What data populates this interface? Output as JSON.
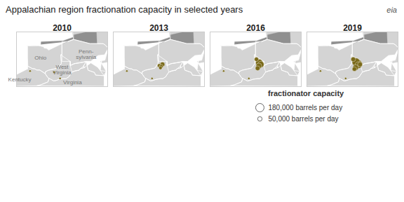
{
  "chart_data": {
    "type": "bubble",
    "title": "Appalachian region fractionation capacity in selected years",
    "color": "#7a6a1a",
    "xlim": [
      -86.2,
      -74.8
    ],
    "ylim": [
      36.5,
      43.5
    ],
    "tick_labels": false,
    "grid": false,
    "legend": "bottom-right",
    "size_lim": [
      0,
      180000
    ],
    "size_legend": {
      "title": "fractionator capacity",
      "values": [
        180000,
        50000
      ],
      "labels": [
        "180,000 barrels per day",
        "50,000 barrels per day"
      ]
    },
    "panels": [
      {
        "title": "2010",
        "x": [
          -84.5,
          -81.5,
          -80.75
        ],
        "values": [
          38.5,
          38.35,
          37.55
        ],
        "sizes": [
          12000,
          15000,
          12000
        ]
      },
      {
        "title": "2013",
        "x": [
          -84.5,
          -81.35,
          -80.45,
          -80.05,
          -80.2,
          -80.3
        ],
        "values": [
          38.5,
          37.55,
          39.2,
          39.35,
          39.1,
          38.9
        ],
        "sizes": [
          12000,
          12000,
          35000,
          55000,
          35000,
          30000
        ]
      },
      {
        "title": "2016",
        "x": [
          -84.5,
          -81.35,
          -80.4,
          -80.05,
          -79.85,
          -80.1,
          -80.25
        ],
        "values": [
          38.5,
          37.55,
          40.0,
          39.55,
          39.35,
          39.15,
          38.85
        ],
        "sizes": [
          12000,
          12000,
          45000,
          130000,
          100000,
          80000,
          55000
        ]
      },
      {
        "title": "2019",
        "x": [
          -84.5,
          -81.35,
          -80.4,
          -80.05,
          -79.85,
          -79.75,
          -80.1,
          -80.25,
          -79.55
        ],
        "values": [
          38.5,
          37.55,
          40.0,
          39.65,
          39.45,
          39.25,
          38.95,
          38.75,
          39.35
        ],
        "sizes": [
          12000,
          12000,
          55000,
          160000,
          180000,
          120000,
          80000,
          50000,
          60000
        ]
      }
    ],
    "annotations": [
      {
        "text": "eia"
      },
      {
        "text": "Ohio",
        "x": -83.2,
        "y": 40.2,
        "panel": "2010"
      },
      {
        "text": "Penn-\nsylvania",
        "x": -77.5,
        "y": 40.6,
        "panel": "2010"
      },
      {
        "text": "West\nVirginia",
        "x": -80.5,
        "y": 38.7,
        "panel": "2010"
      },
      {
        "text": "Kentucky",
        "x": -85.8,
        "y": 37.4,
        "panel": "2010"
      },
      {
        "text": "Virginia",
        "x": -79.2,
        "y": 37.0,
        "panel": "2010"
      }
    ],
    "land": [
      [
        [
          -84.82,
          41.7
        ],
        [
          -83.45,
          41.73
        ],
        [
          -82.84,
          41.59
        ],
        [
          -82.74,
          41.42
        ],
        [
          -82.44,
          41.38
        ],
        [
          -82.18,
          41.16
        ],
        [
          -80.52,
          41.98
        ],
        [
          -80.52,
          40.64
        ],
        [
          -80.67,
          40.58
        ],
        [
          -80.6,
          39.72
        ],
        [
          -80.6,
          39.45
        ],
        [
          -81.0,
          38.87
        ],
        [
          -82.19,
          38.6
        ],
        [
          -82.57,
          38.42
        ],
        [
          -82.61,
          38.17
        ],
        [
          -83.28,
          38.62
        ],
        [
          -83.68,
          38.63
        ],
        [
          -83.9,
          38.77
        ],
        [
          -84.22,
          38.81
        ],
        [
          -84.78,
          39.12
        ],
        [
          -84.82,
          40.31
        ],
        [
          -84.82,
          41.7
        ]
      ],
      [
        [
          -80.52,
          41.98
        ],
        [
          -80.52,
          42.27
        ],
        [
          -79.76,
          42.27
        ],
        [
          -79.07,
          42.54
        ],
        [
          -77.0,
          42.0
        ],
        [
          -76.14,
          42.0
        ],
        [
          -75.36,
          41.99
        ],
        [
          -75.14,
          41.85
        ],
        [
          -74.72,
          41.43
        ],
        [
          -75.19,
          40.57
        ],
        [
          -76.0,
          40.48
        ],
        [
          -76.91,
          39.72
        ],
        [
          -77.47,
          39.72
        ],
        [
          -78.0,
          39.6
        ],
        [
          -78.97,
          39.44
        ],
        [
          -79.48,
          39.2
        ],
        [
          -79.48,
          39.72
        ],
        [
          -80.52,
          39.72
        ],
        [
          -80.52,
          40.64
        ],
        [
          -80.52,
          41.98
        ]
      ],
      [
        [
          -82.61,
          38.17
        ],
        [
          -82.57,
          38.42
        ],
        [
          -82.19,
          38.6
        ],
        [
          -81.0,
          38.87
        ],
        [
          -80.6,
          39.45
        ],
        [
          -80.6,
          39.72
        ],
        [
          -80.67,
          40.58
        ],
        [
          -79.48,
          39.72
        ],
        [
          -79.48,
          39.2
        ],
        [
          -78.97,
          39.44
        ],
        [
          -78.0,
          39.6
        ],
        [
          -77.47,
          39.72
        ],
        [
          -77.82,
          39.14
        ],
        [
          -77.72,
          38.93
        ],
        [
          -78.18,
          38.81
        ],
        [
          -78.41,
          38.6
        ],
        [
          -78.87,
          38.51
        ],
        [
          -79.25,
          38.36
        ],
        [
          -79.5,
          38.0
        ],
        [
          -79.65,
          37.76
        ],
        [
          -80.0,
          37.52
        ],
        [
          -80.3,
          37.52
        ],
        [
          -80.86,
          37.43
        ],
        [
          -81.26,
          37.28
        ],
        [
          -81.55,
          37.24
        ],
        [
          -82.14,
          37.56
        ],
        [
          -82.3,
          37.68
        ],
        [
          -82.61,
          38.17
        ]
      ],
      [
        [
          -84.82,
          38.77
        ],
        [
          -84.78,
          39.12
        ],
        [
          -84.22,
          38.81
        ],
        [
          -83.9,
          38.77
        ],
        [
          -83.68,
          38.63
        ],
        [
          -83.28,
          38.62
        ],
        [
          -82.61,
          38.17
        ],
        [
          -82.3,
          37.68
        ],
        [
          -82.14,
          37.56
        ],
        [
          -82.25,
          37.11
        ],
        [
          -83.13,
          36.74
        ],
        [
          -83.68,
          36.6
        ],
        [
          -88.07,
          36.5
        ],
        [
          -89.57,
          36.5
        ],
        [
          -89.57,
          37.9
        ],
        [
          -88.5,
          37.9
        ],
        [
          -86.5,
          37.9
        ],
        [
          -84.82,
          38.77
        ]
      ],
      [
        [
          -77.47,
          39.72
        ],
        [
          -77.82,
          39.14
        ],
        [
          -77.72,
          38.93
        ],
        [
          -78.18,
          38.81
        ],
        [
          -78.41,
          38.6
        ],
        [
          -78.87,
          38.51
        ],
        [
          -79.25,
          38.36
        ],
        [
          -79.5,
          38.0
        ],
        [
          -79.65,
          37.76
        ],
        [
          -80.0,
          37.52
        ],
        [
          -80.3,
          37.52
        ],
        [
          -80.86,
          37.43
        ],
        [
          -81.26,
          37.28
        ],
        [
          -81.55,
          37.24
        ],
        [
          -82.14,
          37.56
        ],
        [
          -82.25,
          37.11
        ],
        [
          -83.13,
          36.74
        ],
        [
          -83.68,
          36.6
        ],
        [
          -75.24,
          36.55
        ],
        [
          -75.24,
          37.9
        ],
        [
          -76.3,
          37.97
        ],
        [
          -76.46,
          38.32
        ],
        [
          -77.25,
          38.6
        ],
        [
          -77.47,
          39.72
        ]
      ],
      [
        [
          -79.76,
          42.27
        ],
        [
          -79.07,
          42.54
        ],
        [
          -77.0,
          42.0
        ],
        [
          -76.14,
          42.0
        ],
        [
          -75.36,
          41.99
        ],
        [
          -75.14,
          41.85
        ],
        [
          -74.72,
          41.43
        ],
        [
          -74.5,
          41.0
        ],
        [
          -73.9,
          40.9
        ],
        [
          -73.65,
          40.98
        ],
        [
          -72.1,
          41.3
        ],
        [
          -71.85,
          41.32
        ],
        [
          -71.8,
          42.01
        ],
        [
          -72.46,
          42.73
        ],
        [
          -73.26,
          43.58
        ],
        [
          -73.64,
          43.63
        ],
        [
          -74.03,
          43.87
        ],
        [
          -75.3,
          43.88
        ],
        [
          -76.22,
          43.97
        ],
        [
          -76.82,
          43.63
        ],
        [
          -78.72,
          43.62
        ],
        [
          -79.17,
          43.45
        ],
        [
          -79.07,
          43.12
        ],
        [
          -79.07,
          42.54
        ],
        [
          -79.76,
          42.27
        ]
      ],
      [
        [
          -74.72,
          41.43
        ],
        [
          -74.5,
          41.0
        ],
        [
          -73.9,
          40.9
        ],
        [
          -74.0,
          40.05
        ],
        [
          -74.2,
          39.7
        ],
        [
          -75.55,
          39.46
        ],
        [
          -75.56,
          39.83
        ],
        [
          -75.14,
          39.88
        ],
        [
          -74.72,
          41.43
        ]
      ],
      [
        [
          -79.48,
          39.72
        ],
        [
          -79.48,
          39.2
        ],
        [
          -78.97,
          39.44
        ],
        [
          -78.0,
          39.6
        ],
        [
          -77.47,
          39.72
        ],
        [
          -77.25,
          38.6
        ],
        [
          -76.46,
          38.32
        ],
        [
          -76.3,
          37.97
        ],
        [
          -75.24,
          37.9
        ],
        [
          -74.98,
          38.45
        ],
        [
          -75.72,
          38.56
        ],
        [
          -76.05,
          38.98
        ],
        [
          -76.9,
          39.54
        ],
        [
          -77.72,
          38.93
        ],
        [
          -77.82,
          39.14
        ],
        [
          -78.18,
          38.81
        ],
        [
          -78.41,
          38.6
        ],
        [
          -78.87,
          38.51
        ],
        [
          -79.25,
          38.36
        ],
        [
          -79.48,
          39.2
        ]
      ],
      [
        [
          -75.78,
          39.72
        ],
        [
          -75.55,
          39.46
        ],
        [
          -74.98,
          38.45
        ],
        [
          -75.24,
          37.9
        ],
        [
          -75.72,
          38.56
        ],
        [
          -75.56,
          39.83
        ],
        [
          -75.78,
          39.72
        ]
      ]
    ],
    "water": [
      [
        [
          -84.82,
          41.7
        ],
        [
          -83.45,
          41.73
        ],
        [
          -83.16,
          41.72
        ],
        [
          -83.12,
          42.24
        ],
        [
          -80.4,
          42.36
        ],
        [
          -78.9,
          42.9
        ],
        [
          -79.07,
          43.12
        ],
        [
          -79.17,
          43.45
        ],
        [
          -79.07,
          42.54
        ],
        [
          -79.76,
          42.27
        ],
        [
          -80.52,
          41.98
        ],
        [
          -82.18,
          41.16
        ],
        [
          -82.44,
          41.38
        ],
        [
          -82.74,
          41.42
        ],
        [
          -82.84,
          41.59
        ],
        [
          -83.45,
          41.73
        ],
        [
          -84.82,
          41.7
        ]
      ],
      [
        [
          -79.07,
          43.12
        ],
        [
          -76.82,
          43.63
        ],
        [
          -76.22,
          43.97
        ],
        [
          -76.14,
          42.0
        ],
        [
          -77.0,
          42.0
        ],
        [
          -79.07,
          42.54
        ],
        [
          -79.07,
          43.12
        ]
      ]
    ],
    "shore": [
      [
        -84.82,
        41.7
      ],
      [
        -83.45,
        41.73
      ],
      [
        -82.84,
        41.59
      ],
      [
        -82.74,
        41.42
      ],
      [
        -82.44,
        41.38
      ],
      [
        -82.18,
        41.16
      ],
      [
        -80.52,
        41.98
      ],
      [
        -79.76,
        42.27
      ],
      [
        -84.82,
        41.7
      ]
    ]
  }
}
